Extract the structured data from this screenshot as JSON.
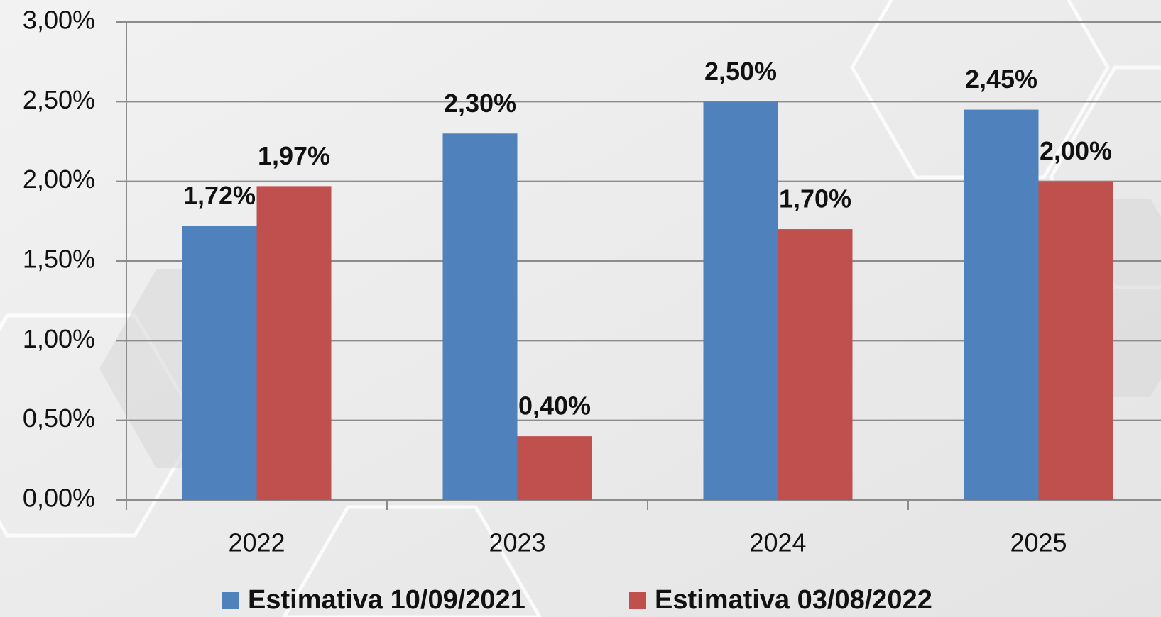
{
  "chart_data": {
    "type": "bar",
    "categories": [
      "2022",
      "2023",
      "2024",
      "2025"
    ],
    "series": [
      {
        "name": "Estimativa 10/09/2021",
        "color": "#4f81bd",
        "values": [
          1.72,
          2.3,
          2.5,
          2.45
        ],
        "value_labels": [
          "1,72%",
          "2,30%",
          "2,50%",
          "2,45%"
        ]
      },
      {
        "name": "Estimativa 03/08/2022",
        "color": "#c0504d",
        "values": [
          1.97,
          0.4,
          1.7,
          2.0
        ],
        "value_labels": [
          "1,97%",
          "0,40%",
          "1,70%",
          "2,00%"
        ]
      }
    ],
    "ylim": [
      0,
      3
    ],
    "yticks": [
      {
        "value": 0,
        "label": "0,00%"
      },
      {
        "value": 0.5,
        "label": "0,50%"
      },
      {
        "value": 1,
        "label": "1,00%"
      },
      {
        "value": 1.5,
        "label": "1,50%"
      },
      {
        "value": 2,
        "label": "2,00%"
      },
      {
        "value": 2.5,
        "label": "2,50%"
      },
      {
        "value": 3,
        "label": "3,00%"
      }
    ],
    "grid": true,
    "legend": "bottom"
  }
}
